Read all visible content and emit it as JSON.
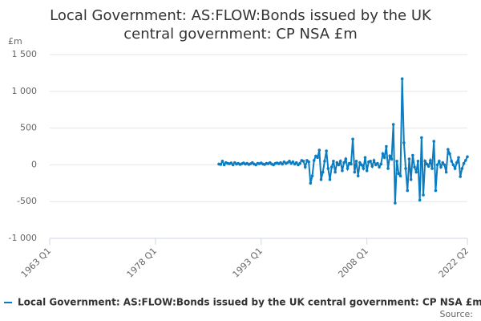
{
  "chart_data": {
    "type": "line",
    "title": "Local Government: AS:FLOW:Bonds issued by the UK central government: CP NSA £m",
    "ylabel": "£m",
    "source": "Source:",
    "x": [
      "1987 Q1",
      "1987 Q2",
      "1987 Q3",
      "1987 Q4",
      "1988 Q1",
      "1988 Q2",
      "1988 Q3",
      "1988 Q4",
      "1989 Q1",
      "1989 Q2",
      "1989 Q3",
      "1989 Q4",
      "1990 Q1",
      "1990 Q2",
      "1990 Q3",
      "1990 Q4",
      "1991 Q1",
      "1991 Q2",
      "1991 Q3",
      "1991 Q4",
      "1992 Q1",
      "1992 Q2",
      "1992 Q3",
      "1992 Q4",
      "1993 Q1",
      "1993 Q2",
      "1993 Q3",
      "1993 Q4",
      "1994 Q1",
      "1994 Q2",
      "1994 Q3",
      "1994 Q4",
      "1995 Q1",
      "1995 Q2",
      "1995 Q3",
      "1995 Q4",
      "1996 Q1",
      "1996 Q2",
      "1996 Q3",
      "1996 Q4",
      "1997 Q1",
      "1997 Q2",
      "1997 Q3",
      "1997 Q4",
      "1998 Q1",
      "1998 Q2",
      "1998 Q3",
      "1998 Q4",
      "1999 Q1",
      "1999 Q2",
      "1999 Q3",
      "1999 Q4",
      "2000 Q1",
      "2000 Q2",
      "2000 Q3",
      "2000 Q4",
      "2001 Q1",
      "2001 Q2",
      "2001 Q3",
      "2001 Q4",
      "2002 Q1",
      "2002 Q2",
      "2002 Q3",
      "2002 Q4",
      "2003 Q1",
      "2003 Q2",
      "2003 Q3",
      "2003 Q4",
      "2004 Q1",
      "2004 Q2",
      "2004 Q3",
      "2004 Q4",
      "2005 Q1",
      "2005 Q2",
      "2005 Q3",
      "2005 Q4",
      "2006 Q1",
      "2006 Q2",
      "2006 Q3",
      "2006 Q4",
      "2007 Q1",
      "2007 Q2",
      "2007 Q3",
      "2007 Q4",
      "2008 Q1",
      "2008 Q2",
      "2008 Q3",
      "2008 Q4",
      "2009 Q1",
      "2009 Q2",
      "2009 Q3",
      "2009 Q4",
      "2010 Q1",
      "2010 Q2",
      "2010 Q3",
      "2010 Q4",
      "2011 Q1",
      "2011 Q2",
      "2011 Q3",
      "2011 Q4",
      "2012 Q1",
      "2012 Q2",
      "2012 Q3",
      "2012 Q4",
      "2013 Q1",
      "2013 Q2",
      "2013 Q3",
      "2013 Q4",
      "2014 Q1",
      "2014 Q2",
      "2014 Q3",
      "2014 Q4",
      "2015 Q1",
      "2015 Q2",
      "2015 Q3",
      "2015 Q4",
      "2016 Q1",
      "2016 Q2",
      "2016 Q3",
      "2016 Q4",
      "2017 Q1",
      "2017 Q2",
      "2017 Q3",
      "2017 Q4",
      "2018 Q1",
      "2018 Q2",
      "2018 Q3",
      "2018 Q4",
      "2019 Q1",
      "2019 Q2",
      "2019 Q3",
      "2019 Q4",
      "2020 Q1",
      "2020 Q2",
      "2020 Q3",
      "2020 Q4",
      "2021 Q1",
      "2021 Q2",
      "2021 Q3",
      "2021 Q4",
      "2022 Q1",
      "2022 Q2"
    ],
    "series": [
      {
        "name": "Local Government: AS:FLOW:Bonds issued by the UK central government: CP NSA £m",
        "color": "#0b7cc0",
        "values": [
          10,
          5,
          50,
          0,
          30,
          20,
          15,
          25,
          0,
          30,
          10,
          20,
          5,
          15,
          25,
          10,
          20,
          5,
          15,
          30,
          10,
          0,
          20,
          15,
          25,
          10,
          5,
          20,
          15,
          30,
          10,
          0,
          20,
          25,
          15,
          30,
          10,
          40,
          20,
          30,
          50,
          20,
          40,
          10,
          30,
          0,
          20,
          60,
          50,
          -30,
          60,
          40,
          -250,
          -150,
          60,
          120,
          100,
          200,
          -200,
          -100,
          50,
          190,
          -50,
          -200,
          -30,
          50,
          -100,
          30,
          0,
          50,
          -80,
          30,
          80,
          -50,
          20,
          10,
          350,
          -100,
          50,
          -150,
          30,
          0,
          -50,
          100,
          -80,
          40,
          50,
          -20,
          60,
          0,
          20,
          -30,
          10,
          150,
          100,
          250,
          -50,
          120,
          80,
          550,
          -520,
          50,
          -120,
          -150,
          1170,
          300,
          -50,
          -350,
          80,
          -200,
          130,
          -30,
          -100,
          50,
          -480,
          370,
          -410,
          50,
          10,
          -20,
          60,
          -50,
          320,
          -350,
          0,
          50,
          -30,
          30,
          0,
          -100,
          210,
          150,
          50,
          0,
          -50,
          30,
          100,
          -160,
          -50,
          20,
          60,
          110
        ]
      }
    ],
    "xlim": [
      "1963 Q1",
      "2022 Q2"
    ],
    "xticks": [
      "1963 Q1",
      "1978 Q1",
      "1993 Q1",
      "2008 Q1",
      "2022 Q2"
    ],
    "ylim": [
      -1000,
      1500
    ],
    "yticks": [
      {
        "value": -1000,
        "label": "-1 000"
      },
      -500,
      0,
      500,
      {
        "value": 1000,
        "label": "1 000"
      },
      {
        "value": 1500,
        "label": "1 500"
      }
    ],
    "grid": true
  }
}
